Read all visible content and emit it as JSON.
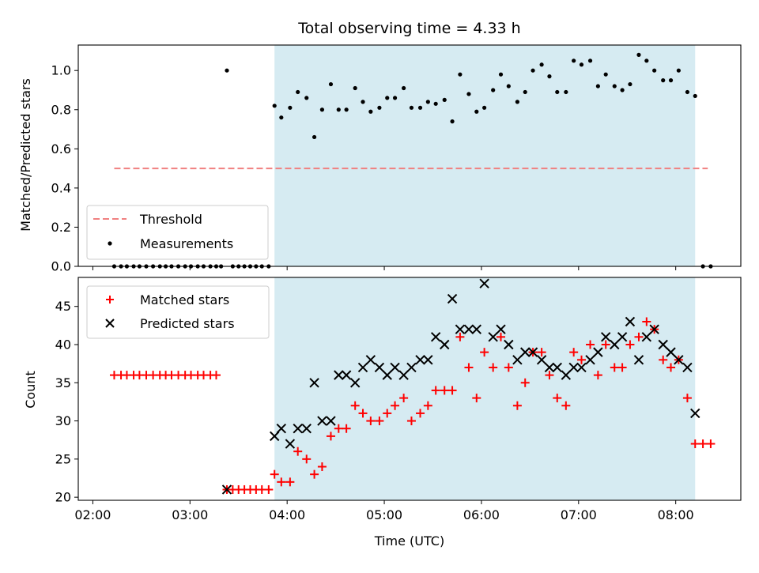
{
  "chart_data": [
    {
      "type": "scatter",
      "panel": "top",
      "title": "Total observing time = 4.33 h",
      "xlabel": "",
      "ylabel": "Matched/Predicted stars",
      "x_unit": "hours UTC",
      "xlim": [
        1.85,
        8.67
      ],
      "ylim": [
        0.0,
        1.13
      ],
      "xticks": [
        2,
        3,
        4,
        5,
        6,
        7,
        8
      ],
      "yticks": [
        0.0,
        0.2,
        0.4,
        0.6,
        0.8,
        1.0
      ],
      "ytick_labels": [
        "0.0",
        "0.2",
        "0.4",
        "0.6",
        "0.8",
        "1.0"
      ],
      "observing_window": [
        3.87,
        8.2
      ],
      "legend_position": "lower-left",
      "series": [
        {
          "name": "Threshold",
          "style": "dashed-line",
          "color": "#f08080",
          "x": [
            2.22,
            8.33
          ],
          "y": [
            0.5,
            0.5
          ]
        },
        {
          "name": "Measurements",
          "style": "dot",
          "color": "#000000",
          "x": [
            2.22,
            2.29,
            2.35,
            2.42,
            2.48,
            2.55,
            2.62,
            2.69,
            2.75,
            2.81,
            2.88,
            2.95,
            3.01,
            3.08,
            3.14,
            3.21,
            3.27,
            3.32,
            3.38,
            3.44,
            3.5,
            3.56,
            3.62,
            3.68,
            3.74,
            3.81,
            3.87,
            3.94,
            4.03,
            4.11,
            4.2,
            4.28,
            4.36,
            4.45,
            4.53,
            4.61,
            4.7,
            4.78,
            4.86,
            4.95,
            5.03,
            5.11,
            5.2,
            5.28,
            5.37,
            5.45,
            5.53,
            5.62,
            5.7,
            5.78,
            5.87,
            5.95,
            6.03,
            6.12,
            6.2,
            6.28,
            6.37,
            6.45,
            6.53,
            6.62,
            6.7,
            6.78,
            6.87,
            6.95,
            7.03,
            7.12,
            7.2,
            7.28,
            7.37,
            7.45,
            7.53,
            7.62,
            7.7,
            7.78,
            7.87,
            7.95,
            8.03,
            8.12,
            8.2,
            8.28,
            8.36
          ],
          "y": [
            0,
            0,
            0,
            0,
            0,
            0,
            0,
            0,
            0,
            0,
            0,
            0,
            0,
            0,
            0,
            0,
            0,
            0,
            1.0,
            0,
            0,
            0,
            0,
            0,
            0,
            0,
            0.82,
            0.76,
            0.81,
            0.89,
            0.86,
            0.66,
            0.8,
            0.93,
            0.8,
            0.8,
            0.91,
            0.84,
            0.79,
            0.81,
            0.86,
            0.86,
            0.91,
            0.81,
            0.81,
            0.84,
            0.83,
            0.85,
            0.74,
            0.98,
            0.88,
            0.79,
            0.81,
            0.9,
            0.98,
            0.92,
            0.84,
            0.89,
            1.0,
            1.03,
            0.97,
            0.89,
            0.89,
            1.05,
            1.03,
            1.05,
            0.92,
            0.98,
            0.92,
            0.9,
            0.93,
            1.08,
            1.05,
            1.0,
            0.95,
            0.95,
            1.0,
            0.89,
            0.87,
            0,
            0
          ]
        }
      ]
    },
    {
      "type": "scatter",
      "panel": "bottom",
      "title": "",
      "xlabel": "Time (UTC)",
      "ylabel": "Count",
      "x_unit": "hours UTC",
      "xlim": [
        1.85,
        8.67
      ],
      "ylim": [
        19.6,
        48.8
      ],
      "xticks": [
        2,
        3,
        4,
        5,
        6,
        7,
        8
      ],
      "xtick_labels": [
        "02:00",
        "03:00",
        "04:00",
        "05:00",
        "06:00",
        "07:00",
        "08:00"
      ],
      "yticks": [
        20,
        25,
        30,
        35,
        40,
        45
      ],
      "ytick_labels": [
        "20",
        "25",
        "30",
        "35",
        "40",
        "45"
      ],
      "observing_window": [
        3.87,
        8.2
      ],
      "legend_position": "upper-left",
      "series": [
        {
          "name": "Matched stars",
          "marker": "+",
          "color": "#ff0000",
          "x": [
            2.22,
            2.29,
            2.35,
            2.42,
            2.48,
            2.55,
            2.62,
            2.69,
            2.75,
            2.81,
            2.88,
            2.95,
            3.01,
            3.08,
            3.14,
            3.21,
            3.27,
            3.38,
            3.44,
            3.5,
            3.56,
            3.62,
            3.68,
            3.74,
            3.81,
            3.87,
            3.94,
            4.03,
            4.11,
            4.2,
            4.28,
            4.36,
            4.45,
            4.53,
            4.61,
            4.7,
            4.78,
            4.86,
            4.95,
            5.03,
            5.11,
            5.2,
            5.28,
            5.37,
            5.45,
            5.53,
            5.62,
            5.7,
            5.78,
            5.87,
            5.95,
            6.03,
            6.12,
            6.2,
            6.28,
            6.37,
            6.45,
            6.53,
            6.62,
            6.7,
            6.78,
            6.87,
            6.95,
            7.03,
            7.12,
            7.2,
            7.28,
            7.37,
            7.45,
            7.53,
            7.62,
            7.7,
            7.78,
            7.87,
            7.95,
            8.03,
            8.12,
            8.2,
            8.28,
            8.36
          ],
          "y": [
            36,
            36,
            36,
            36,
            36,
            36,
            36,
            36,
            36,
            36,
            36,
            36,
            36,
            36,
            36,
            36,
            36,
            21,
            21,
            21,
            21,
            21,
            21,
            21,
            21,
            23,
            22,
            22,
            26,
            25,
            23,
            24,
            28,
            29,
            29,
            32,
            31,
            30,
            30,
            31,
            32,
            33,
            30,
            31,
            32,
            34,
            34,
            34,
            41,
            37,
            33,
            39,
            37,
            41,
            37,
            32,
            35,
            39,
            39,
            36,
            33,
            32,
            39,
            38,
            40,
            36,
            40,
            37,
            37,
            40,
            41,
            43,
            42,
            38,
            37,
            38,
            33,
            27,
            27,
            27
          ]
        },
        {
          "name": "Predicted stars",
          "marker": "x",
          "color": "#000000",
          "x": [
            3.38,
            3.87,
            3.94,
            4.03,
            4.11,
            4.2,
            4.28,
            4.36,
            4.45,
            4.53,
            4.61,
            4.7,
            4.78,
            4.86,
            4.95,
            5.03,
            5.11,
            5.2,
            5.28,
            5.37,
            5.45,
            5.53,
            5.62,
            5.7,
            5.78,
            5.87,
            5.95,
            6.03,
            6.12,
            6.2,
            6.28,
            6.37,
            6.45,
            6.53,
            6.62,
            6.7,
            6.78,
            6.87,
            6.95,
            7.03,
            7.12,
            7.2,
            7.28,
            7.37,
            7.45,
            7.53,
            7.62,
            7.7,
            7.78,
            7.87,
            7.95,
            8.03,
            8.12,
            8.2
          ],
          "y": [
            21,
            28,
            29,
            27,
            29,
            29,
            35,
            30,
            30,
            36,
            36,
            35,
            37,
            38,
            37,
            36,
            37,
            36,
            37,
            38,
            38,
            41,
            40,
            46,
            42,
            42,
            42,
            48,
            41,
            42,
            40,
            38,
            39,
            39,
            38,
            37,
            37,
            36,
            37,
            37,
            38,
            39,
            41,
            40,
            41,
            43,
            38,
            41,
            42,
            40,
            39,
            38,
            37,
            31
          ]
        }
      ]
    }
  ]
}
